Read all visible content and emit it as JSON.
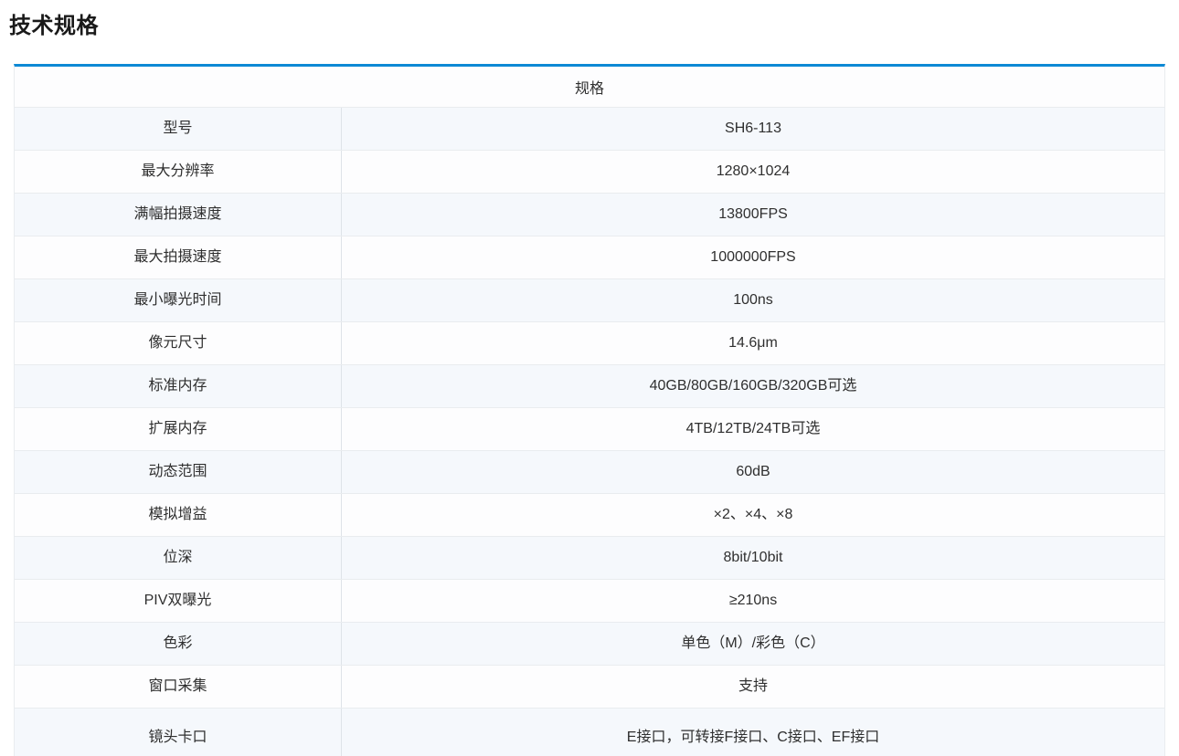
{
  "page_title": "技术规格",
  "colors": {
    "accent": "#0d89d5",
    "row_alt_background": "#f5f8fc",
    "text": "#2f2f2f"
  },
  "table": {
    "header": "规格",
    "rows": [
      {
        "label": "型号",
        "value": "SH6-113"
      },
      {
        "label": "最大分辨率",
        "value": "1280×1024"
      },
      {
        "label": "满幅拍摄速度",
        "value": "13800FPS"
      },
      {
        "label": "最大拍摄速度",
        "value": "1000000FPS"
      },
      {
        "label": "最小曝光时间",
        "value": "100ns"
      },
      {
        "label": "像元尺寸",
        "value": "14.6μm"
      },
      {
        "label": "标准内存",
        "value": "40GB/80GB/160GB/320GB可选"
      },
      {
        "label": "扩展内存",
        "value": "4TB/12TB/24TB可选"
      },
      {
        "label": "动态范围",
        "value": "60dB"
      },
      {
        "label": "模拟增益",
        "value": "×2、×4、×8"
      },
      {
        "label": "位深",
        "value": "8bit/10bit"
      },
      {
        "label": "PIV双曝光",
        "value": "≥210ns"
      },
      {
        "label": "色彩",
        "value": "单色（M）/彩色（C）"
      },
      {
        "label": "窗口采集",
        "value": "支持"
      },
      {
        "label": "镜头卡口",
        "value": "E接口，可转接F接口、C接口、EF接口"
      }
    ]
  }
}
